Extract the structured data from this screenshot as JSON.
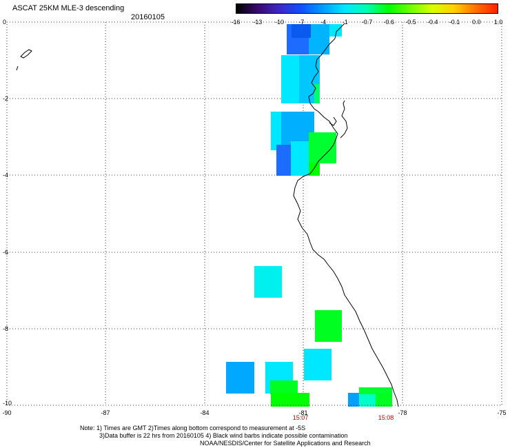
{
  "header": {
    "title": "ASCAT 25KM MLE-3 descending",
    "date": "20160105"
  },
  "colorbar": {
    "labels": [
      "-16",
      "-13",
      "-10",
      "-7",
      "-4",
      "-1",
      "-0.7",
      "-0.6",
      "-0.5",
      "-0.4",
      "-0.1",
      "0.0",
      "1.0"
    ],
    "colors": [
      "#000000",
      "#3a0a6e",
      "#3c28c8",
      "#1050ff",
      "#00a0ff",
      "#00e8ff",
      "#00ffb0",
      "#00ff00",
      "#70ff00",
      "#d8ff00",
      "#ffd000",
      "#ff7000",
      "#ff2000"
    ]
  },
  "axes": {
    "y_labels": [
      "0",
      "-2",
      "-4",
      "-6",
      "-8",
      "-10"
    ],
    "x_labels": [
      "-90",
      "-87",
      "-84",
      "-81",
      "-78",
      "-75"
    ]
  },
  "times": [
    {
      "label": "15:07",
      "lon": -81.3
    },
    {
      "label": "15:08",
      "lon": -78.6
    }
  ],
  "notes": {
    "line1": "Note: 1) Times are GMT 2)Times along bottom correspond to measurement at -5S",
    "line2": "3)Data buffer is 22 hrs from 20160105 4) Black wind barbs indicate possible contamination",
    "line3": "NOAA/NESDIS/Center for Satellite Applications and Research"
  }
}
